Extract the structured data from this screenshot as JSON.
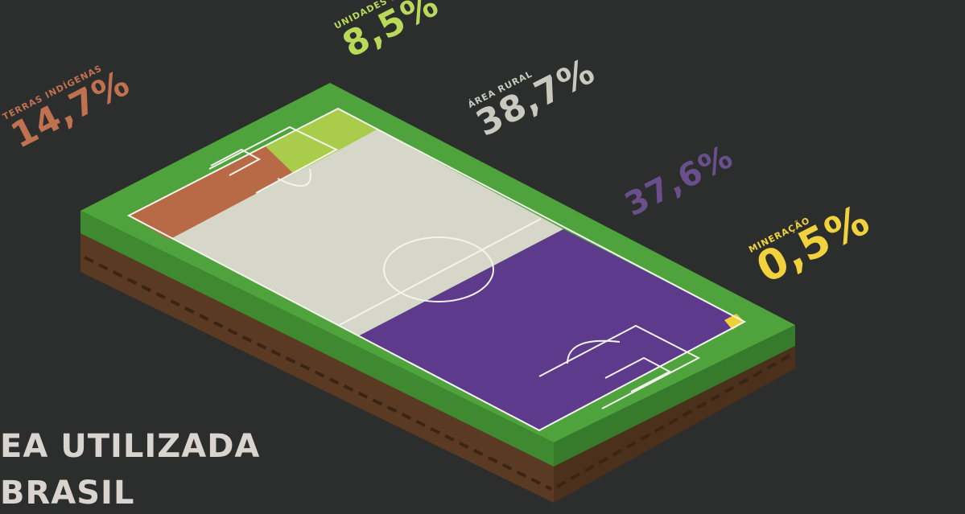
{
  "title": {
    "line1": "EA UTILIZADA",
    "line2": "BRASIL"
  },
  "segments": [
    {
      "key": "terras",
      "label": "TERRAS INDÍGENAS",
      "value_text": "14,7%",
      "value": 14.7,
      "color": "#b86a47"
    },
    {
      "key": "unidades",
      "label": "UNIDADES DE CONSERVAÇÃO",
      "value_text": "8,5%",
      "value": 8.5,
      "color": "#a9cc4a"
    },
    {
      "key": "rural",
      "label": "ÁREA RURAL",
      "value_text": "38,7%",
      "value": 38.7,
      "color": "#d6d7c9"
    },
    {
      "key": "outros",
      "label": "",
      "value_text": "37,6%",
      "value": 37.6,
      "color": "#5e3a8c"
    },
    {
      "key": "mineracao",
      "label": "MINERAÇÃO",
      "value_text": "0,5%",
      "value": 0.5,
      "color": "#f0d03a"
    }
  ],
  "colors": {
    "background": "#2b2e2c",
    "grass": "#4fa33c",
    "grass_side": "#3f8a31",
    "soil": "#5a3a22"
  }
}
